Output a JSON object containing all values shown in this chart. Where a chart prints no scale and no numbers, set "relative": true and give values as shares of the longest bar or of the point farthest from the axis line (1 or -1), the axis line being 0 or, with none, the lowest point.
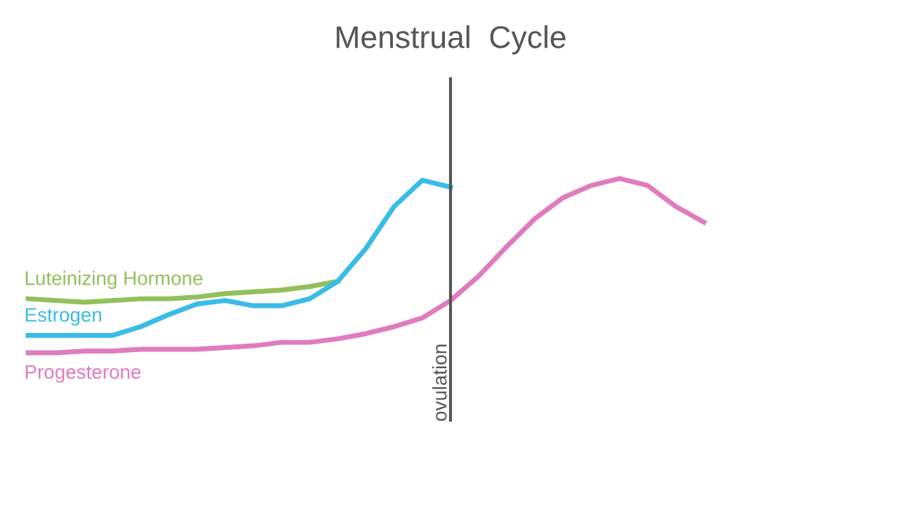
{
  "chart_data": {
    "type": "line",
    "title": "Menstrual  Cycle",
    "relative": true,
    "tick_labels": false,
    "marker": "none",
    "line_style": "solid",
    "categories": [
      null,
      null,
      null,
      null,
      null,
      null,
      null,
      null,
      null,
      null,
      null,
      null,
      null,
      null,
      null,
      null,
      null,
      null,
      null,
      null,
      null,
      null,
      null,
      null,
      null
    ],
    "series": [
      {
        "name": "Luteinizing Hormone",
        "color": "#92c05a",
        "values": [
          0.31,
          0.3,
          0.29,
          0.3,
          0.31,
          0.31,
          0.32,
          0.34,
          0.35,
          0.36,
          0.38,
          0.41,
          null,
          null,
          null,
          null,
          null,
          null,
          null,
          null,
          null,
          null,
          null,
          null,
          null
        ]
      },
      {
        "name": "Estrogen",
        "color": "#3bbbe8",
        "values": [
          0.1,
          0.1,
          0.1,
          0.1,
          0.15,
          0.22,
          0.28,
          0.3,
          0.27,
          0.27,
          0.31,
          0.41,
          0.6,
          0.84,
          0.99,
          0.95,
          null,
          null,
          null,
          null,
          null,
          null,
          null,
          null,
          null
        ]
      },
      {
        "name": "Progesterone",
        "color": "#e07bbf",
        "values": [
          0,
          0,
          0.01,
          0.01,
          0.02,
          0.02,
          0.02,
          0.03,
          0.04,
          0.06,
          0.06,
          0.08,
          0.11,
          0.15,
          0.2,
          0.3,
          0.44,
          0.61,
          0.77,
          0.89,
          0.96,
          1.0,
          0.96,
          0.84,
          0.75
        ]
      }
    ],
    "annotations": [
      "ovulation"
    ]
  }
}
